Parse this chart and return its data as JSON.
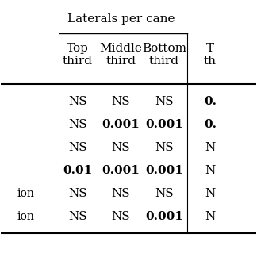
{
  "group_header": "Laterals per cane",
  "col_headers": [
    "Top\nthird",
    "Middle\nthird",
    "Bottom\nthird",
    "T\nth"
  ],
  "row_labels": [
    "",
    "",
    "",
    "",
    "ion",
    "ion"
  ],
  "table_data": [
    [
      "NS",
      "NS",
      "NS",
      "0."
    ],
    [
      "NS",
      "0.001",
      "0.001",
      "0."
    ],
    [
      "NS",
      "NS",
      "NS",
      "N"
    ],
    [
      "0.01",
      "0.001",
      "0.001",
      "N"
    ],
    [
      "NS",
      "NS",
      "NS",
      "N"
    ],
    [
      "NS",
      "NS",
      "0.001",
      "N"
    ]
  ],
  "bg_color": "#ffffff",
  "font_family": "serif",
  "header_fontsize": 11,
  "data_fontsize": 11,
  "row_label_fontsize": 10
}
